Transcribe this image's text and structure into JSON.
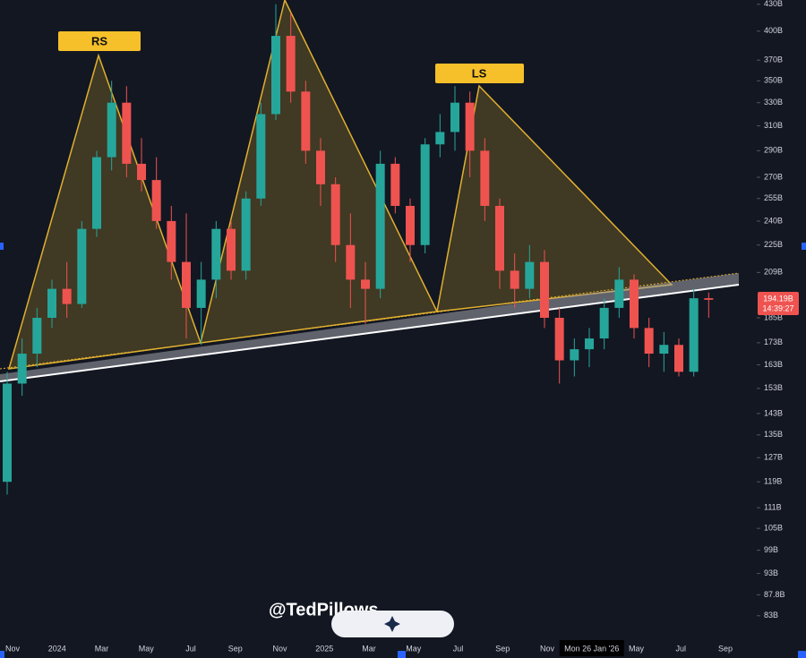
{
  "chart_data": {
    "type": "candlestick",
    "log_scale": true,
    "ylim": [
      78.3,
      435
    ],
    "yticks": [
      {
        "value": 430,
        "label": "430B"
      },
      {
        "value": 400,
        "label": "400B"
      },
      {
        "value": 370,
        "label": "370B"
      },
      {
        "value": 350,
        "label": "350B"
      },
      {
        "value": 330,
        "label": "330B"
      },
      {
        "value": 310,
        "label": "310B"
      },
      {
        "value": 290,
        "label": "290B"
      },
      {
        "value": 270,
        "label": "270B"
      },
      {
        "value": 255,
        "label": "255B"
      },
      {
        "value": 240,
        "label": "240B"
      },
      {
        "value": 225,
        "label": "225B"
      },
      {
        "value": 209,
        "label": "209B"
      },
      {
        "value": 185,
        "label": "185B"
      },
      {
        "value": 173,
        "label": "173B"
      },
      {
        "value": 163,
        "label": "163B"
      },
      {
        "value": 153,
        "label": "153B"
      },
      {
        "value": 143,
        "label": "143B"
      },
      {
        "value": 135,
        "label": "135B"
      },
      {
        "value": 127,
        "label": "127B"
      },
      {
        "value": 119,
        "label": "119B"
      },
      {
        "value": 111,
        "label": "111B"
      },
      {
        "value": 105,
        "label": "105B"
      },
      {
        "value": 99,
        "label": "99B"
      },
      {
        "value": 93,
        "label": "93B"
      },
      {
        "value": 87.8,
        "label": "87.8B"
      },
      {
        "value": 83,
        "label": "83B"
      }
    ],
    "x_labels": [
      "Nov",
      "2024",
      "Mar",
      "May",
      "Jul",
      "Sep",
      "Nov",
      "2025",
      "Mar",
      "May",
      "Jul",
      "Sep",
      "Nov",
      "Mon 26 Jan '26",
      "May",
      "Jul",
      "Sep"
    ],
    "up_color": "#26a69a",
    "down_color": "#ef5350",
    "candles": [
      [
        119,
        160,
        115,
        155
      ],
      [
        155,
        175,
        150,
        168
      ],
      [
        168,
        190,
        162,
        185
      ],
      [
        185,
        205,
        180,
        200
      ],
      [
        200,
        215,
        185,
        192
      ],
      [
        192,
        240,
        190,
        235
      ],
      [
        235,
        290,
        230,
        285
      ],
      [
        285,
        350,
        275,
        330
      ],
      [
        330,
        345,
        270,
        280
      ],
      [
        280,
        300,
        260,
        268
      ],
      [
        268,
        285,
        235,
        240
      ],
      [
        240,
        250,
        205,
        215
      ],
      [
        215,
        245,
        175,
        190
      ],
      [
        190,
        215,
        172,
        205
      ],
      [
        205,
        240,
        195,
        235
      ],
      [
        235,
        240,
        205,
        210
      ],
      [
        210,
        260,
        205,
        255
      ],
      [
        255,
        330,
        250,
        320
      ],
      [
        320,
        430,
        315,
        395
      ],
      [
        395,
        420,
        330,
        340
      ],
      [
        340,
        350,
        280,
        290
      ],
      [
        290,
        300,
        250,
        265
      ],
      [
        265,
        270,
        215,
        225
      ],
      [
        225,
        245,
        190,
        205
      ],
      [
        205,
        215,
        182,
        200
      ],
      [
        200,
        290,
        195,
        280
      ],
      [
        280,
        285,
        245,
        250
      ],
      [
        250,
        255,
        215,
        225
      ],
      [
        225,
        300,
        220,
        295
      ],
      [
        295,
        320,
        285,
        305
      ],
      [
        305,
        345,
        290,
        330
      ],
      [
        330,
        340,
        270,
        290
      ],
      [
        290,
        300,
        240,
        250
      ],
      [
        250,
        255,
        200,
        210
      ],
      [
        210,
        220,
        190,
        200
      ],
      [
        200,
        225,
        195,
        215
      ],
      [
        215,
        222,
        180,
        185
      ],
      [
        185,
        190,
        155,
        165
      ],
      [
        165,
        175,
        158,
        170
      ],
      [
        170,
        180,
        162,
        175
      ],
      [
        175,
        195,
        170,
        190
      ],
      [
        190,
        212,
        185,
        205
      ],
      [
        205,
        208,
        175,
        180
      ],
      [
        180,
        185,
        162,
        168
      ],
      [
        168,
        178,
        160,
        172
      ],
      [
        172,
        175,
        158,
        160
      ],
      [
        160,
        200,
        158,
        195
      ],
      [
        195,
        198,
        185,
        194.19
      ]
    ],
    "annotations": [
      "RS",
      "LS"
    ],
    "price_label": "194.19B",
    "countdown": "14:39:27",
    "watermark": "@TedPillows"
  }
}
